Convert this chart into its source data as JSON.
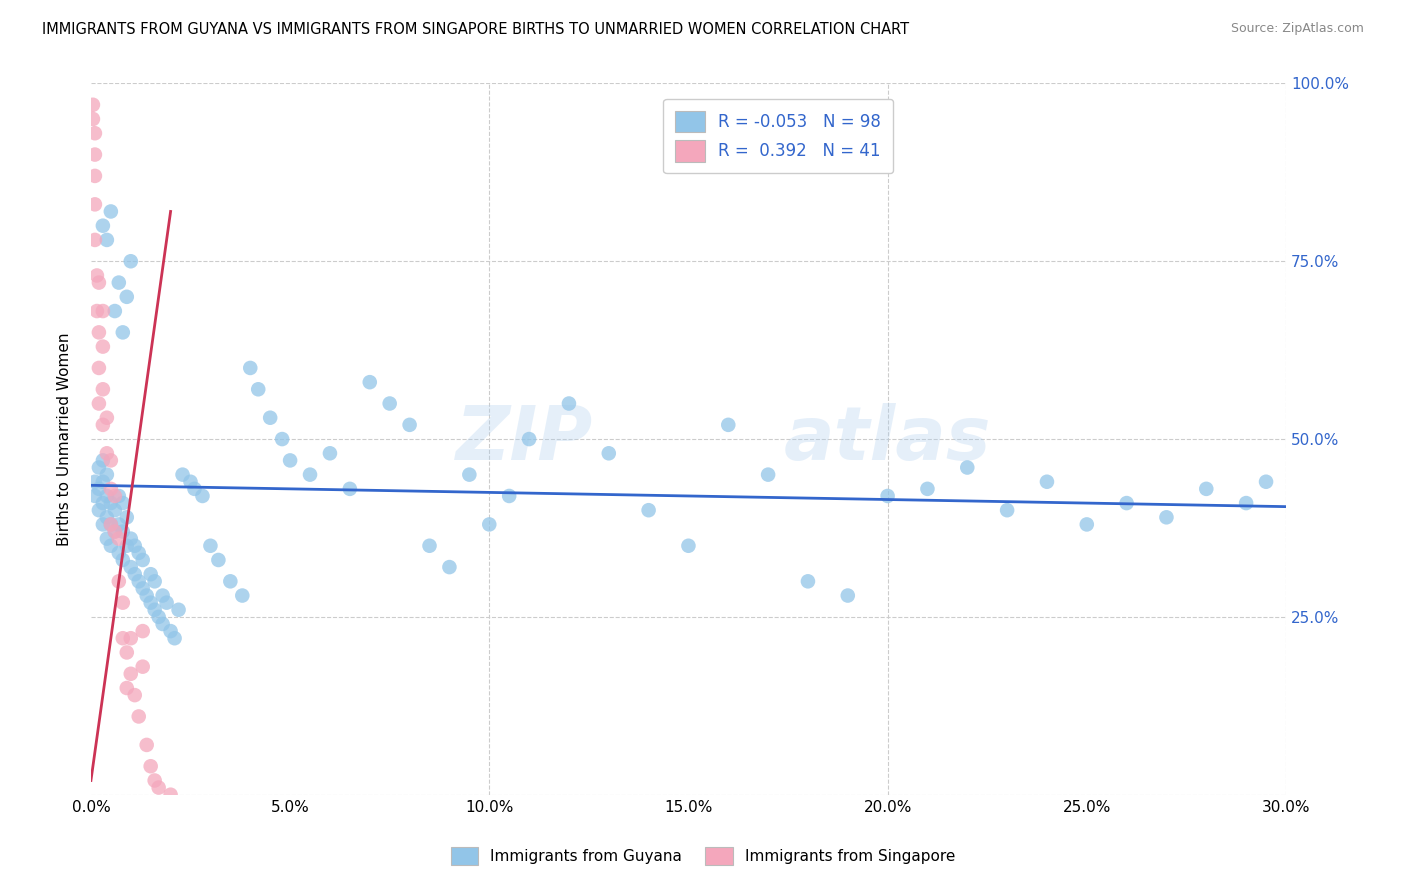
{
  "title": "IMMIGRANTS FROM GUYANA VS IMMIGRANTS FROM SINGAPORE BIRTHS TO UNMARRIED WOMEN CORRELATION CHART",
  "source": "Source: ZipAtlas.com",
  "ylabel": "Births to Unmarried Women",
  "xlim": [
    0.0,
    0.3
  ],
  "ylim": [
    0.0,
    1.0
  ],
  "xtick_labels": [
    "0.0%",
    "",
    "",
    "",
    "",
    "",
    "",
    "",
    "",
    "",
    "5.0%",
    "",
    "",
    "",
    "",
    "",
    "",
    "",
    "",
    "",
    "10.0%",
    "",
    "",
    "",
    "",
    "",
    "",
    "",
    "",
    "",
    "15.0%",
    "",
    "",
    "",
    "",
    "",
    "",
    "",
    "",
    "",
    "20.0%",
    "",
    "",
    "",
    "",
    "",
    "",
    "",
    "",
    "",
    "25.0%",
    "",
    "",
    "",
    "",
    "",
    "",
    "",
    "",
    "",
    "30.0%"
  ],
  "xtick_vals": [
    0.0,
    0.05,
    0.1,
    0.15,
    0.2,
    0.25,
    0.3
  ],
  "ytick_vals": [
    0.0,
    0.25,
    0.5,
    0.75,
    1.0
  ],
  "ytick_labels_right": [
    "",
    "25.0%",
    "50.0%",
    "75.0%",
    "100.0%"
  ],
  "blue_color": "#92C5E8",
  "pink_color": "#F4A7BC",
  "blue_line_color": "#3366CC",
  "pink_line_color": "#CC3355",
  "watermark": "ZIPatlas",
  "blue_scatter_x": [
    0.001,
    0.001,
    0.002,
    0.002,
    0.002,
    0.003,
    0.003,
    0.003,
    0.003,
    0.004,
    0.004,
    0.004,
    0.004,
    0.005,
    0.005,
    0.005,
    0.006,
    0.006,
    0.007,
    0.007,
    0.007,
    0.008,
    0.008,
    0.008,
    0.009,
    0.009,
    0.01,
    0.01,
    0.011,
    0.011,
    0.012,
    0.012,
    0.013,
    0.013,
    0.014,
    0.015,
    0.015,
    0.016,
    0.016,
    0.017,
    0.018,
    0.018,
    0.019,
    0.02,
    0.021,
    0.022,
    0.023,
    0.025,
    0.026,
    0.028,
    0.03,
    0.032,
    0.035,
    0.038,
    0.04,
    0.042,
    0.045,
    0.048,
    0.05,
    0.055,
    0.06,
    0.065,
    0.07,
    0.075,
    0.08,
    0.085,
    0.09,
    0.095,
    0.1,
    0.105,
    0.11,
    0.12,
    0.13,
    0.14,
    0.15,
    0.16,
    0.17,
    0.18,
    0.19,
    0.2,
    0.21,
    0.22,
    0.23,
    0.24,
    0.25,
    0.26,
    0.27,
    0.28,
    0.29,
    0.295,
    0.003,
    0.004,
    0.005,
    0.006,
    0.007,
    0.008,
    0.009,
    0.01
  ],
  "blue_scatter_y": [
    0.42,
    0.44,
    0.4,
    0.43,
    0.46,
    0.38,
    0.41,
    0.44,
    0.47,
    0.36,
    0.39,
    0.42,
    0.45,
    0.35,
    0.38,
    0.41,
    0.37,
    0.4,
    0.34,
    0.38,
    0.42,
    0.33,
    0.37,
    0.41,
    0.35,
    0.39,
    0.32,
    0.36,
    0.31,
    0.35,
    0.3,
    0.34,
    0.29,
    0.33,
    0.28,
    0.27,
    0.31,
    0.26,
    0.3,
    0.25,
    0.24,
    0.28,
    0.27,
    0.23,
    0.22,
    0.26,
    0.45,
    0.44,
    0.43,
    0.42,
    0.35,
    0.33,
    0.3,
    0.28,
    0.6,
    0.57,
    0.53,
    0.5,
    0.47,
    0.45,
    0.48,
    0.43,
    0.58,
    0.55,
    0.52,
    0.35,
    0.32,
    0.45,
    0.38,
    0.42,
    0.5,
    0.55,
    0.48,
    0.4,
    0.35,
    0.52,
    0.45,
    0.3,
    0.28,
    0.42,
    0.43,
    0.46,
    0.4,
    0.44,
    0.38,
    0.41,
    0.39,
    0.43,
    0.41,
    0.44,
    0.8,
    0.78,
    0.82,
    0.68,
    0.72,
    0.65,
    0.7,
    0.75
  ],
  "pink_scatter_x": [
    0.0005,
    0.0005,
    0.001,
    0.001,
    0.001,
    0.001,
    0.001,
    0.0015,
    0.0015,
    0.002,
    0.002,
    0.002,
    0.002,
    0.003,
    0.003,
    0.003,
    0.003,
    0.004,
    0.004,
    0.005,
    0.005,
    0.005,
    0.006,
    0.006,
    0.007,
    0.007,
    0.008,
    0.008,
    0.009,
    0.009,
    0.01,
    0.01,
    0.011,
    0.012,
    0.013,
    0.013,
    0.014,
    0.015,
    0.016,
    0.017,
    0.02
  ],
  "pink_scatter_y": [
    0.97,
    0.95,
    0.93,
    0.9,
    0.87,
    0.83,
    0.78,
    0.73,
    0.68,
    0.72,
    0.65,
    0.6,
    0.55,
    0.68,
    0.63,
    0.57,
    0.52,
    0.53,
    0.48,
    0.47,
    0.43,
    0.38,
    0.42,
    0.37,
    0.36,
    0.3,
    0.27,
    0.22,
    0.2,
    0.15,
    0.22,
    0.17,
    0.14,
    0.11,
    0.23,
    0.18,
    0.07,
    0.04,
    0.02,
    0.01,
    0.0
  ],
  "blue_trend_x": [
    0.0,
    0.3
  ],
  "blue_trend_y": [
    0.435,
    0.405
  ],
  "pink_trend_x": [
    0.0,
    0.02
  ],
  "pink_trend_y": [
    0.02,
    0.82
  ]
}
